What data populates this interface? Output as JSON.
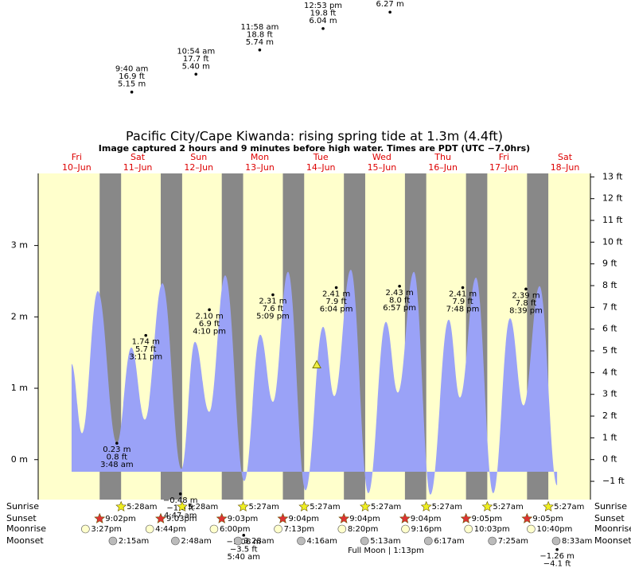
{
  "chart_data": {
    "type": "area",
    "title": "Pacific City/Cape Kiwanda: rising  spring tide at 1.3m (4.4ft)",
    "subtitle": "Image captured 2 hours and 9 minutes before high water. Times are PDT (UTC −7.0hrs)",
    "xlim": [
      -3.13,
      214.0
    ],
    "xticks": [
      {
        "value": 12,
        "label": "Fri"
      },
      {
        "value": 36,
        "label": "Sat"
      },
      {
        "value": 60,
        "label": "Sun"
      },
      {
        "value": 84,
        "label": "Mon"
      },
      {
        "value": 108,
        "label": "Tue"
      },
      {
        "value": 132,
        "label": "Wed"
      },
      {
        "value": 156,
        "label": "Thu"
      },
      {
        "value": 180,
        "label": "Fri"
      },
      {
        "value": 204,
        "label": "Sat"
      }
    ],
    "xtick_dates": [
      "10–Jun",
      "11–Jun",
      "12–Jun",
      "13–Jun",
      "14–Jun",
      "15–Jun",
      "16–Jun",
      "17–Jun",
      "18–Jun"
    ],
    "ylim": [
      -0.56,
      4.01
    ],
    "yticks": [
      {
        "value": 0,
        "label": "0 m"
      },
      {
        "value": 1,
        "label": "1 m"
      },
      {
        "value": 2,
        "label": "2 m"
      },
      {
        "value": 3,
        "label": "3 m"
      }
    ],
    "y2lim": [
      -1.84,
      13.16
    ],
    "y2ticks": [
      {
        "value": -1,
        "label": "−1 ft"
      },
      {
        "value": 0,
        "label": "0 ft"
      },
      {
        "value": 1,
        "label": "1 ft"
      },
      {
        "value": 2,
        "label": "2 ft"
      },
      {
        "value": 3,
        "label": "3 ft"
      },
      {
        "value": 4,
        "label": "4 ft"
      },
      {
        "value": 5,
        "label": "5 ft"
      },
      {
        "value": 6,
        "label": "6 ft"
      },
      {
        "value": 7,
        "label": "7 ft"
      },
      {
        "value": 8,
        "label": "8 ft"
      },
      {
        "value": 9,
        "label": "9 ft"
      },
      {
        "value": 10,
        "label": "10 ft"
      },
      {
        "value": 11,
        "label": "11 ft"
      },
      {
        "value": 12,
        "label": "12 ft"
      },
      {
        "value": 13,
        "label": "13 ft"
      }
    ],
    "background_color": "#ffffcc",
    "night_color": "#888888",
    "series": [
      {
        "color": "#9aa2f7",
        "x": [
          10.0,
          14.1,
          20.3,
          27.8,
          33.5,
          38.8,
          45.7,
          53.2,
          58.5,
          64.1,
          70.4,
          77.9,
          84.2,
          89.2,
          95.1,
          102.0,
          108.9,
          113.3,
          119.8,
          126.7,
          133.6,
          138.3,
          144.6,
          151.1,
          158.3,
          162.7,
          169.0,
          175.8,
          182.4,
          187.7,
          194.0,
          200.9
        ],
        "values": [
          1.34,
          0.37,
          2.36,
          0.23,
          1.57,
          0.56,
          2.47,
          -0.13,
          1.65,
          0.67,
          2.58,
          -0.3,
          1.75,
          0.81,
          2.63,
          -0.43,
          1.86,
          0.89,
          2.66,
          -0.47,
          1.93,
          0.94,
          2.63,
          -0.49,
          1.96,
          0.87,
          2.55,
          -0.47,
          1.98,
          0.76,
          2.43,
          -0.36
        ]
      }
    ],
    "now": {
      "x": 106.4,
      "value": 1.33
    },
    "annotations": [
      {
        "x": 33.67,
        "value": 5.15,
        "position": "above",
        "lines": [
          "9:40 am",
          "16.9 ft",
          "5.15 m"
        ]
      },
      {
        "x": 58.9,
        "value": 5.4,
        "position": "above",
        "lines": [
          "10:54 am",
          "17.7 ft",
          "5.40 m"
        ]
      },
      {
        "x": 83.97,
        "value": 5.74,
        "position": "above",
        "lines": [
          "11:58 am",
          "18.8 ft",
          "5.74 m"
        ]
      },
      {
        "x": 108.88,
        "value": 6.04,
        "position": "above",
        "lines": [
          "12:53 pm",
          "19.8 ft",
          "6.04 m"
        ]
      },
      {
        "x": 135.2,
        "value": 6.27,
        "position": "above",
        "lines": [
          "6.27 m"
        ]
      },
      {
        "x": 27.8,
        "value": 0.23,
        "position": "below",
        "lines": [
          "0.23 m",
          "0.8 ft",
          "3:48 am"
        ]
      },
      {
        "x": 39.18,
        "value": 1.74,
        "position": "below",
        "lines": [
          "1.74 m",
          "5.7 ft",
          "3:11 pm"
        ]
      },
      {
        "x": 52.78,
        "value": -0.48,
        "position": "below",
        "lines": [
          "−0.48 m",
          "−1.6 ft",
          "4:47 am"
        ]
      },
      {
        "x": 64.17,
        "value": 2.1,
        "position": "below",
        "lines": [
          "2.10 m",
          "6.9 ft",
          "4:10 pm"
        ]
      },
      {
        "x": 77.67,
        "value": -1.06,
        "position": "below",
        "lines": [
          "−1.06 m",
          "−3.5 ft",
          "5:40 am"
        ]
      },
      {
        "x": 89.15,
        "value": 2.31,
        "position": "below",
        "lines": [
          "2.31 m",
          "7.6 ft",
          "5:09 pm"
        ]
      },
      {
        "x": 114.07,
        "value": 2.41,
        "position": "below",
        "lines": [
          "2.41 m",
          "7.9 ft",
          "6:04 pm"
        ]
      },
      {
        "x": 138.95,
        "value": 2.43,
        "position": "below",
        "lines": [
          "2.43 m",
          "8.0 ft",
          "6:57 pm"
        ]
      },
      {
        "x": 163.8,
        "value": 2.41,
        "position": "below",
        "lines": [
          "2.41 m",
          "7.9 ft",
          "7:48 pm"
        ]
      },
      {
        "x": 188.65,
        "value": 2.39,
        "position": "below",
        "lines": [
          "2.39 m",
          "7.8 ft",
          "8:39 pm"
        ]
      },
      {
        "x": 200.9,
        "value": -1.26,
        "position": "below",
        "lines": [
          "−1.26 m",
          "−4.1 ft"
        ]
      }
    ],
    "event_rows": [
      "Sunrise",
      "Sunset",
      "Moonrise",
      "Moonset"
    ],
    "sunrise": [
      {
        "time": "5:28am",
        "x": 29.47
      },
      {
        "time": "5:28am",
        "x": 53.47
      },
      {
        "time": "5:27am",
        "x": 77.45
      },
      {
        "time": "5:27am",
        "x": 101.45
      },
      {
        "time": "5:27am",
        "x": 125.45
      },
      {
        "time": "5:27am",
        "x": 149.45
      },
      {
        "time": "5:27am",
        "x": 173.45
      },
      {
        "time": "5:27am",
        "x": 197.45
      }
    ],
    "sunset": [
      {
        "time": "9:02pm",
        "x": 21.03
      },
      {
        "time": "9:03pm",
        "x": 45.05
      },
      {
        "time": "9:03pm",
        "x": 69.05
      },
      {
        "time": "9:04pm",
        "x": 93.07
      },
      {
        "time": "9:04pm",
        "x": 117.07
      },
      {
        "time": "9:04pm",
        "x": 141.07
      },
      {
        "time": "9:05pm",
        "x": 165.08
      },
      {
        "time": "9:05pm",
        "x": 189.08
      }
    ],
    "moonrise": [
      {
        "time": "3:27pm",
        "x": 15.45
      },
      {
        "time": "4:44pm",
        "x": 40.73
      },
      {
        "time": "6:00pm",
        "x": 66.0
      },
      {
        "time": "7:13pm",
        "x": 91.22
      },
      {
        "time": "8:20pm",
        "x": 116.33
      },
      {
        "time": "9:16pm",
        "x": 141.27
      },
      {
        "time": "10:03pm",
        "x": 166.05
      },
      {
        "time": "10:40pm",
        "x": 190.67
      }
    ],
    "moonset": [
      {
        "time": "2:15am",
        "x": 26.25
      },
      {
        "time": "2:48am",
        "x": 50.8
      },
      {
        "time": "3:28am",
        "x": 75.47
      },
      {
        "time": "4:16am",
        "x": 100.27
      },
      {
        "time": "5:13am",
        "x": 125.22
      },
      {
        "time": "6:17am",
        "x": 150.28
      },
      {
        "time": "7:25am",
        "x": 175.42
      },
      {
        "time": "8:33am",
        "x": 200.55
      }
    ],
    "moon_phase": "Full Moon | 1:13pm"
  }
}
